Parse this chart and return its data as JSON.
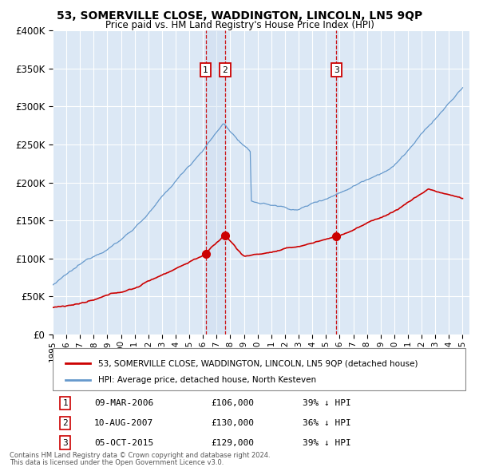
{
  "title": "53, SOMERVILLE CLOSE, WADDINGTON, LINCOLN, LN5 9QP",
  "subtitle": "Price paid vs. HM Land Registry's House Price Index (HPI)",
  "ylim": [
    0,
    400000
  ],
  "yticks": [
    0,
    50000,
    100000,
    150000,
    200000,
    250000,
    300000,
    350000,
    400000
  ],
  "ytick_labels": [
    "£0",
    "£50K",
    "£100K",
    "£150K",
    "£200K",
    "£250K",
    "£300K",
    "£350K",
    "£400K"
  ],
  "xlim_start": 1995.0,
  "xlim_end": 2025.5,
  "plot_bg": "#dce8f5",
  "fig_bg": "#ffffff",
  "grid_color": "#ffffff",
  "red_line_color": "#cc0000",
  "blue_line_color": "#6699cc",
  "dashed_line_color": "#cc0000",
  "shade_color": "#c8d8ed",
  "transactions": [
    {
      "num": 1,
      "date_dec": 2006.19,
      "price": 106000,
      "label": "09-MAR-2006",
      "price_str": "£106,000",
      "note": "39% ↓ HPI"
    },
    {
      "num": 2,
      "date_dec": 2007.61,
      "price": 130000,
      "label": "10-AUG-2007",
      "price_str": "£130,000",
      "note": "36% ↓ HPI"
    },
    {
      "num": 3,
      "date_dec": 2015.76,
      "price": 129000,
      "label": "05-OCT-2015",
      "price_str": "£129,000",
      "note": "39% ↓ HPI"
    }
  ],
  "legend_entry1": "53, SOMERVILLE CLOSE, WADDINGTON, LINCOLN, LN5 9QP (detached house)",
  "legend_entry2": "HPI: Average price, detached house, North Kesteven",
  "footer1": "Contains HM Land Registry data © Crown copyright and database right 2024.",
  "footer2": "This data is licensed under the Open Government Licence v3.0."
}
